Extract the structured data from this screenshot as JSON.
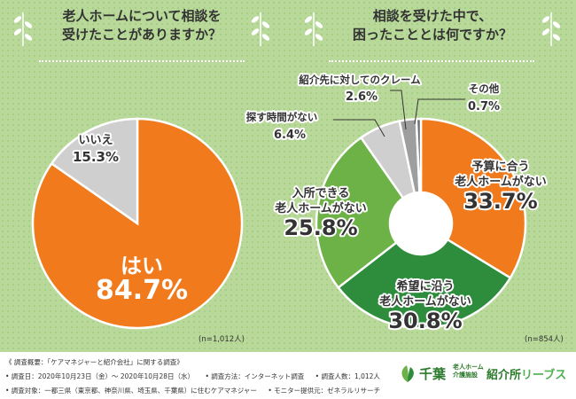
{
  "left_panel": {
    "title_line1": "老人ホームについて相談を",
    "title_line2": "受けたことがありますか？",
    "n_note": "(n=1,012人)"
  },
  "right_panel": {
    "title_line1": "相談を受けた中で、",
    "title_line2": "困ったこととは何ですか？",
    "n_note": "(n=854人)"
  },
  "chart_data": [
    {
      "type": "pie",
      "title": "老人ホームについて相談を受けたことがありますか？",
      "slices": [
        {
          "label": "はい",
          "value": 84.7,
          "color": "#f07a1c"
        },
        {
          "label": "いいえ",
          "value": 15.3,
          "color": "#cfcfcf"
        }
      ],
      "value_labels": [
        "84.7%",
        "15.3%"
      ]
    },
    {
      "type": "pie",
      "title": "相談を受けた中で、困ったこととは何ですか？",
      "donut": true,
      "slices": [
        {
          "label": "予算に合う老人ホームがない",
          "label_lines": [
            "予算に合う",
            "老人ホームがない"
          ],
          "value": 33.7,
          "color": "#f07a1c"
        },
        {
          "label": "希望に沿う老人ホームがない",
          "label_lines": [
            "希望に沿う",
            "老人ホームがない"
          ],
          "value": 30.8,
          "color": "#2d8d3c"
        },
        {
          "label": "入所できる老人ホームがない",
          "label_lines": [
            "入所できる",
            "老人ホームがない"
          ],
          "value": 25.8,
          "color": "#6db246"
        },
        {
          "label": "探す時間がない",
          "label_lines": [
            "探す時間がない"
          ],
          "value": 6.4,
          "color": "#cfcfcf"
        },
        {
          "label": "紹介先に対してのクレーム",
          "label_lines": [
            "紹介先に対してのクレーム"
          ],
          "value": 2.6,
          "color": "#9e9e9e"
        },
        {
          "label": "その他",
          "label_lines": [
            "その他"
          ],
          "value": 0.7,
          "color": "#6e6e6e"
        }
      ],
      "value_labels": [
        "33.7%",
        "30.8%",
        "25.8%",
        "6.4%",
        "2.6%",
        "0.7%"
      ]
    }
  ],
  "footer": {
    "survey_line1": "《 調査概要：「ケアマネジャーと紹介会社」に関する調査》",
    "survey_date": "• 調査日：2020年10月23日（金）～ 2020年10月28日（水）",
    "survey_method": "• 調査方法：インターネット調査",
    "survey_count": "• 調査人数：1,012人",
    "survey_target": "• 調査対象：一都三県（東京都、神奈川県、埼玉県、千葉県）に住むケアマネジャー",
    "survey_provider": "• モニター提供元：ゼネラルリサーチ",
    "logo_main": "千葉",
    "logo_small_1": "老人ホーム",
    "logo_small_2": "介護施設",
    "logo_brand_1": "紹介所",
    "logo_brand_2": "リーブス"
  }
}
